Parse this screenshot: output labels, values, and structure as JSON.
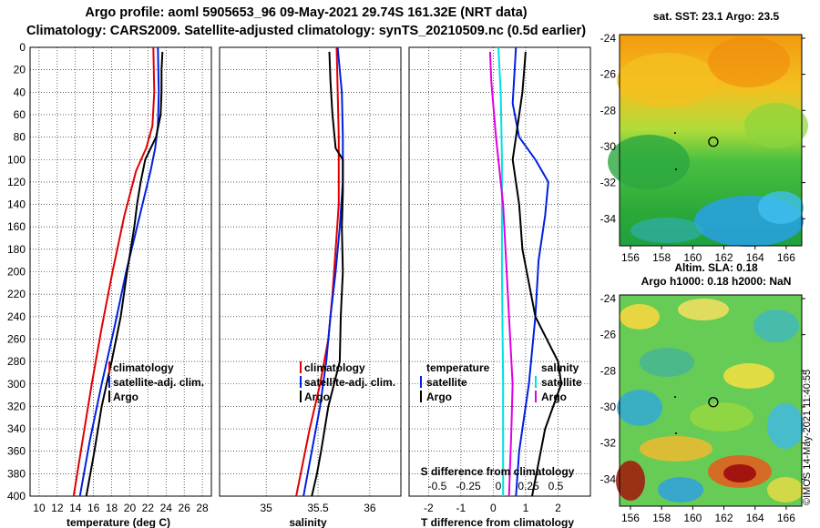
{
  "titles": {
    "line1": "Argo profile: aoml 5905653_96 09-May-2021 29.74S 161.32E (NRT data)",
    "line2": "Climatology: CARS2009. Satellite-adjusted climatology: synTS_20210509.nc (0.5d earlier)"
  },
  "colors": {
    "climatology": "#e00000",
    "satellite": "#0020e0",
    "argo": "#000000",
    "t_diff": "#00e0e0",
    "s_diff": "#e000e0"
  },
  "depth_axis": {
    "ticks": [
      0,
      20,
      40,
      60,
      80,
      100,
      120,
      140,
      160,
      180,
      200,
      220,
      240,
      260,
      280,
      300,
      320,
      340,
      360,
      380,
      400
    ],
    "range": [
      0,
      400
    ]
  },
  "chart_data": [
    {
      "type": "line",
      "id": "temperature",
      "xlabel": "temperature (deg C)",
      "xlim": [
        9,
        29
      ],
      "x_ticks": [
        10,
        12,
        14,
        16,
        18,
        20,
        22,
        24,
        26,
        28
      ],
      "legend": [
        "climatology",
        "satellite-adj. clim.",
        "Argo"
      ],
      "series": [
        {
          "name": "climatology",
          "color": "#e00000",
          "depth": [
            0,
            40,
            70,
            90,
            110,
            150,
            200,
            250,
            300,
            350,
            400
          ],
          "values": [
            22.6,
            22.7,
            22.5,
            21.8,
            20.7,
            19.4,
            18.1,
            16.9,
            15.8,
            14.8,
            13.8
          ]
        },
        {
          "name": "satellite-adj. clim.",
          "color": "#0020e0",
          "depth": [
            0,
            40,
            70,
            90,
            110,
            150,
            200,
            250,
            300,
            350,
            400
          ],
          "values": [
            23.1,
            23.2,
            23.1,
            22.8,
            22.3,
            21.1,
            19.6,
            18.3,
            16.9,
            15.6,
            14.5
          ]
        },
        {
          "name": "Argo",
          "color": "#000000",
          "depth": [
            4,
            20,
            40,
            60,
            80,
            100,
            120,
            140,
            160,
            200,
            240,
            280,
            320,
            360,
            400
          ],
          "values": [
            23.6,
            23.5,
            23.5,
            23.4,
            22.9,
            21.7,
            21.2,
            20.8,
            20.5,
            19.7,
            19.0,
            18.0,
            16.9,
            16.1,
            15.2
          ]
        }
      ]
    },
    {
      "type": "line",
      "id": "salinity",
      "xlabel": "salinity",
      "xlim": [
        34.55,
        36.3
      ],
      "x_ticks": [
        35,
        35.5,
        36
      ],
      "x_tick_labels": [
        "35",
        "35.5",
        "36"
      ],
      "legend": [
        "climatology",
        "satellite-adj. clim.",
        "Argo"
      ],
      "series": [
        {
          "name": "climatology",
          "color": "#e00000",
          "depth": [
            0,
            80,
            140,
            180,
            220,
            260,
            300,
            340,
            400
          ],
          "values": [
            35.68,
            35.7,
            35.7,
            35.67,
            35.64,
            35.6,
            35.52,
            35.42,
            35.29
          ]
        },
        {
          "name": "satellite-adj. clim.",
          "color": "#0020e0",
          "depth": [
            0,
            40,
            80,
            120,
            160,
            200,
            240,
            280,
            320,
            360,
            400
          ],
          "values": [
            35.69,
            35.73,
            35.74,
            35.74,
            35.71,
            35.67,
            35.62,
            35.58,
            35.52,
            35.44,
            35.36
          ]
        },
        {
          "name": "Argo",
          "color": "#000000",
          "depth": [
            4,
            30,
            60,
            90,
            100,
            130,
            160,
            200,
            240,
            280,
            320,
            360,
            380,
            400
          ],
          "values": [
            35.61,
            35.62,
            35.64,
            35.67,
            35.74,
            35.74,
            35.73,
            35.74,
            35.72,
            35.71,
            35.6,
            35.53,
            35.49,
            35.44
          ]
        }
      ]
    },
    {
      "type": "line",
      "id": "differences",
      "xlabel": "T difference from climatology",
      "xlim": [
        -2.6,
        3.0
      ],
      "x_ticks": [
        -2,
        -1,
        0,
        1,
        2
      ],
      "top_axis_label": "S difference from climatology",
      "top_ticks": [
        "-0.5",
        "-0.25",
        "0",
        "0.25",
        "0.5"
      ],
      "legend_temperature": {
        "title": "temperature",
        "items": [
          "satellite",
          "Argo"
        ]
      },
      "legend_salinity": {
        "title": "salinity",
        "items": [
          "satellite",
          "Argo"
        ]
      },
      "series": [
        {
          "name": "temperature satellite",
          "color": "#0020e0",
          "depth": [
            0,
            50,
            80,
            100,
            120,
            150,
            190,
            240,
            300,
            360,
            400
          ],
          "values": [
            0.7,
            0.6,
            0.8,
            1.3,
            1.7,
            1.6,
            1.4,
            1.3,
            1.1,
            0.8,
            0.7
          ]
        },
        {
          "name": "temperature Argo",
          "color": "#000000",
          "depth": [
            4,
            40,
            80,
            100,
            140,
            180,
            240,
            280,
            300,
            340,
            400
          ],
          "values": [
            1.0,
            0.9,
            0.7,
            0.6,
            0.8,
            0.9,
            1.3,
            2.0,
            2.1,
            1.6,
            1.2
          ]
        },
        {
          "name": "salinity satellite",
          "color": "#00e0e0",
          "depth": [
            0,
            40,
            100,
            200,
            300,
            400
          ],
          "values": [
            0.0,
            0.02,
            0.03,
            0.03,
            0.04,
            0.04
          ]
        },
        {
          "name": "salinity Argo",
          "color": "#e000e0",
          "depth": [
            4,
            30,
            80,
            100,
            140,
            200,
            240,
            260,
            300,
            340,
            400
          ],
          "values": [
            -0.07,
            -0.06,
            -0.02,
            0.0,
            0.04,
            0.07,
            0.09,
            0.1,
            0.12,
            0.11,
            0.09
          ]
        }
      ]
    }
  ],
  "map_top": {
    "title": "sat. SST: 23.1 Argo: 23.5",
    "y_ticks": [
      "-24",
      "-26",
      "-28",
      "-30",
      "-32",
      "-34"
    ],
    "x_ticks": [
      "156",
      "158",
      "160",
      "162",
      "164",
      "166"
    ],
    "marker": {
      "lon": 161.32,
      "lat": -29.74
    }
  },
  "map_bottom": {
    "title1": "Altim. SLA: 0.18",
    "title2": "Argo h1000: 0.18 h2000: NaN",
    "y_ticks": [
      "-24",
      "-26",
      "-28",
      "-30",
      "-32",
      "-34"
    ],
    "x_ticks": [
      "156",
      "158",
      "160",
      "162",
      "164",
      "166"
    ],
    "marker": {
      "lon": 161.32,
      "lat": -29.74
    }
  },
  "stamp": "©IMOS 14-May-2021 11:40:55"
}
